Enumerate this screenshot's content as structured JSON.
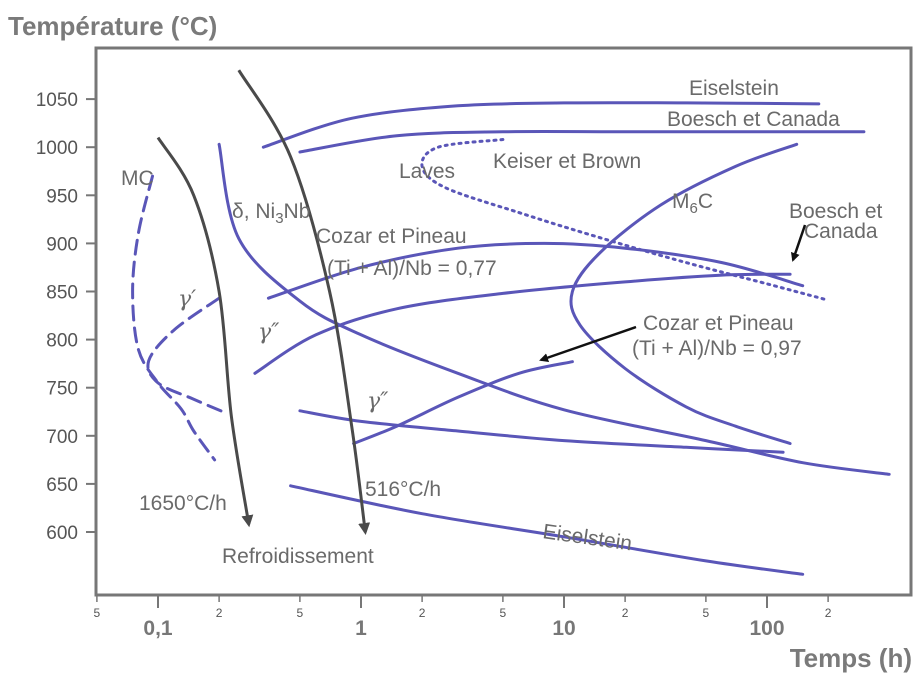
{
  "colors": {
    "curve": "#5a56b8",
    "cooling": "#4a4a4a",
    "text": "#6a6a6a",
    "frame": "#777777"
  },
  "chart_data": {
    "type": "line",
    "title": "",
    "ylabel": "Température (°C)",
    "xlabel": "Temps (h)",
    "x_scale": "log",
    "xlim": [
      0.05,
      400
    ],
    "ylim": [
      555,
      1080
    ],
    "yticks": [
      600,
      650,
      700,
      750,
      800,
      850,
      900,
      950,
      1000,
      1050
    ],
    "xticks_major": [
      {
        "value": 0.1,
        "label": "0,1"
      },
      {
        "value": 1,
        "label": "1"
      },
      {
        "value": 10,
        "label": "10"
      },
      {
        "value": 100,
        "label": "100"
      }
    ],
    "xticks_minor": [
      {
        "value": 0.05,
        "label": "5"
      },
      {
        "value": 0.2,
        "label": "2"
      },
      {
        "value": 0.5,
        "label": "5"
      },
      {
        "value": 2,
        "label": "2"
      },
      {
        "value": 5,
        "label": "5"
      },
      {
        "value": 20,
        "label": "2"
      },
      {
        "value": 50,
        "label": "5"
      },
      {
        "value": 200,
        "label": "2"
      }
    ],
    "grid": false,
    "legend": "none",
    "series": [
      {
        "name": "Eiselstein",
        "style": "solid",
        "x": [
          0.33,
          0.9,
          3,
          10,
          40,
          180
        ],
        "y": [
          1000,
          1030,
          1043,
          1046,
          1046,
          1045
        ]
      },
      {
        "name": "Eiselstein",
        "style": "solid",
        "x": [
          0.45,
          2,
          10,
          50,
          150
        ],
        "y": [
          648,
          619,
          595,
          570,
          556
        ]
      },
      {
        "name": "Boesch et Canada",
        "style": "solid",
        "x": [
          0.5,
          1.5,
          5,
          20,
          100,
          300
        ],
        "y": [
          995,
          1012,
          1016,
          1016,
          1016,
          1016
        ]
      },
      {
        "name": "Keiser et Brown",
        "style": "dotted",
        "x": [
          5,
          2.4,
          2,
          2.6,
          6,
          15,
          40,
          100,
          200
        ],
        "y": [
          1008,
          1000,
          980,
          958,
          932,
          906,
          880,
          858,
          841
        ]
      },
      {
        "name": "Cozar et Pineau (Ti + Al)/Nb = 0,77",
        "style": "solid",
        "x": [
          0.35,
          1,
          3,
          8,
          20,
          60,
          150
        ],
        "y": [
          843,
          875,
          895,
          900,
          895,
          880,
          856
        ]
      },
      {
        "name": "Boesch et Canada",
        "style": "solid",
        "x": [
          0.3,
          0.6,
          1.5,
          5,
          20,
          60,
          130
        ],
        "y": [
          765,
          805,
          832,
          848,
          860,
          867,
          868
        ]
      },
      {
        "name": "M6C",
        "style": "solid",
        "x": [
          140,
          70,
          30,
          15,
          11,
          12,
          20,
          40,
          70,
          130
        ],
        "y": [
          1003,
          980,
          940,
          890,
          850,
          815,
          770,
          730,
          710,
          692
        ]
      },
      {
        "name": "Cozar et Pineau (Ti + Al)/Nb = 0,97",
        "style": "solid",
        "x": [
          0.92,
          1.5,
          3,
          6,
          11
        ],
        "y": [
          692,
          710,
          740,
          765,
          777
        ]
      },
      {
        "name": "δ, Ni3Nb",
        "style": "solid",
        "x": [
          0.2,
          0.25,
          0.5,
          1,
          3,
          10,
          50,
          150,
          400
        ],
        "y": [
          1003,
          905,
          840,
          805,
          765,
          727,
          695,
          672,
          660
        ]
      },
      {
        "name": "γ''",
        "style": "solid",
        "x": [
          0.5,
          1,
          3,
          10,
          40,
          120
        ],
        "y": [
          726,
          715,
          705,
          695,
          688,
          683
        ]
      },
      {
        "name": "MC",
        "style": "dashed",
        "x": [
          0.094,
          0.08,
          0.075,
          0.08,
          0.1,
          0.13,
          0.15,
          0.19
        ],
        "y": [
          970,
          910,
          850,
          790,
          755,
          728,
          705,
          675
        ]
      },
      {
        "name": "γ'",
        "style": "dashed",
        "x": [
          0.2,
          0.12,
          0.09,
          0.1,
          0.15,
          0.22
        ],
        "y": [
          843,
          810,
          778,
          755,
          738,
          723
        ]
      }
    ],
    "cooling_curves": [
      {
        "name": "1650°C/h",
        "x": [
          0.1,
          0.15,
          0.2,
          0.23,
          0.28
        ],
        "y": [
          1010,
          950,
          850,
          720,
          608
        ]
      },
      {
        "name": "516°C/h",
        "x": [
          0.25,
          0.45,
          0.7,
          0.9,
          1.05
        ],
        "y": [
          1080,
          990,
          850,
          710,
          600
        ]
      }
    ],
    "annotations": {
      "eiselstein_top": "Eiselstein",
      "boesch_top": "Boesch et Canada",
      "keiser": "Keiser et Brown",
      "laves": "Laves",
      "m6c_main": "M",
      "m6c_sub": "6",
      "m6c_end": "C",
      "mc": "MC",
      "delta_main": "δ, Ni",
      "delta_sub": "3",
      "delta_end": "Nb",
      "cozar77_a": "Cozar et Pineau",
      "cozar77_b": "(Ti + Al)/Nb = 0,77",
      "boesch_r1": "Boesch et",
      "boesch_r2": "Canada",
      "cozar97_a": "Cozar et Pineau",
      "cozar97_b": "(Ti + Al)/Nb = 0,97",
      "gamma_prime": "γ′",
      "gamma_dp1": "γ″",
      "gamma_dp2": "γ″",
      "rate1": "1650°C/h",
      "rate2": "516°C/h",
      "refroid": "Refroidissement",
      "eiselstein_bot": "Eiselstein"
    }
  }
}
